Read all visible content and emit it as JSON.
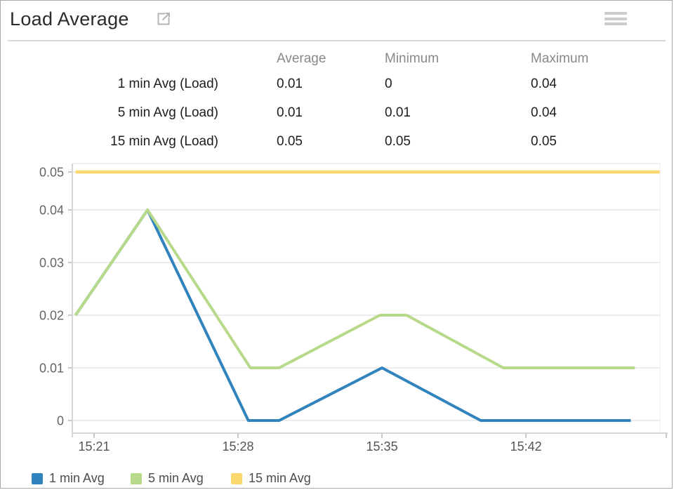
{
  "header": {
    "title": "Load Average",
    "external_link_icon": "open-in-new-window",
    "menu_icon": "hamburger-menu"
  },
  "stats_table": {
    "columns": [
      "Average",
      "Minimum",
      "Maximum"
    ],
    "rows": [
      {
        "label": "1 min Avg (Load)",
        "average": "0.01",
        "minimum": "0",
        "maximum": "0.04"
      },
      {
        "label": "5 min Avg (Load)",
        "average": "0.01",
        "minimum": "0.01",
        "maximum": "0.04"
      },
      {
        "label": "15 min Avg (Load)",
        "average": "0.05",
        "minimum": "0.05",
        "maximum": "0.05"
      }
    ]
  },
  "chart_data": {
    "type": "line",
    "title": "Load Average",
    "xlabel": "",
    "ylabel": "",
    "x_unit": "minutes after 15:00",
    "x_ticks": [
      21,
      28,
      35,
      42
    ],
    "x_tick_labels": [
      "15:21",
      "15:28",
      "15:35",
      "15:42"
    ],
    "y_ticks": [
      0,
      0.01,
      0.02,
      0.03,
      0.04,
      0.05
    ],
    "y_tick_labels": [
      "0",
      "0.01",
      "0.02",
      "0.03",
      "0.04",
      "0.05"
    ],
    "ylim": [
      0,
      0.05
    ],
    "grid": true,
    "legend_position": "bottom",
    "series": [
      {
        "name": "1 min Avg",
        "color": "#3183bd",
        "x": [
          20.1,
          23.6,
          28.5,
          30.0,
          35.0,
          39.8,
          47.1
        ],
        "values": [
          0.02,
          0.04,
          0,
          0,
          0.01,
          0,
          0
        ]
      },
      {
        "name": "5 min Avg",
        "color": "#b7d98a",
        "x": [
          20.1,
          23.6,
          28.6,
          30.0,
          34.9,
          36.2,
          40.9,
          47.3
        ],
        "values": [
          0.02,
          0.04,
          0.01,
          0.01,
          0.02,
          0.02,
          0.01,
          0.01
        ]
      },
      {
        "name": "15 min Avg",
        "color": "#fbd76d",
        "x": [
          20.1,
          48.5
        ],
        "values": [
          0.05,
          0.05
        ]
      }
    ]
  },
  "legend": {
    "items": [
      {
        "label": "1 min Avg",
        "color": "#3183bd"
      },
      {
        "label": "5 min Avg",
        "color": "#b7d98a"
      },
      {
        "label": "15 min Avg",
        "color": "#fbd76d"
      }
    ]
  }
}
